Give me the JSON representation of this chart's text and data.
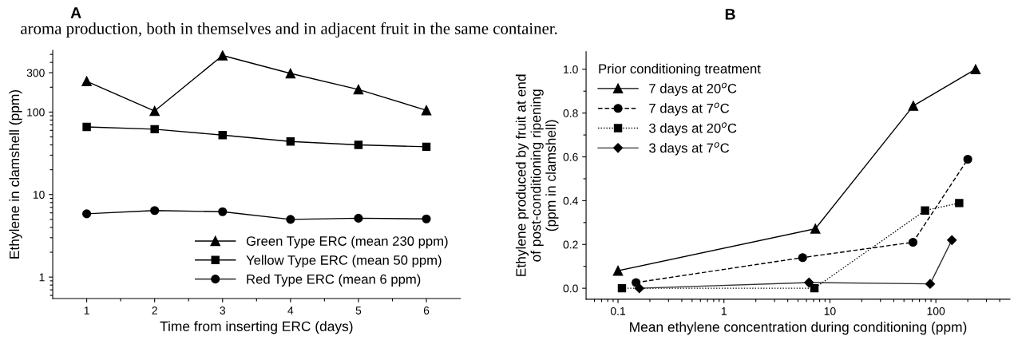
{
  "chart_data": [
    {
      "type": "line",
      "title": "A",
      "xlabel": "Time from inserting ERC (days)",
      "ylabel": "Ethylene in clamshell (ppm)",
      "log": "y",
      "legend": "bottom right",
      "grid": false,
      "annotations": [
        "aroma production, both in themselves and in adjacent fruit in the same container."
      ],
      "x": [
        1,
        2,
        3,
        4,
        5,
        6
      ],
      "xlim": [
        0.5,
        6.5
      ],
      "xticks": [
        1,
        {
          "value": 1.5,
          "label": null
        },
        2,
        {
          "value": 2.5,
          "label": null
        },
        3,
        {
          "value": 3.5,
          "label": null
        },
        4,
        {
          "value": 4.5,
          "label": null
        },
        5,
        {
          "value": 5.5,
          "label": null
        },
        6
      ],
      "ylim": [
        0.55,
        560
      ],
      "yticks": [
        {
          "value": 0.6,
          "label": null
        },
        {
          "value": 0.7,
          "label": null
        },
        {
          "value": 0.8,
          "label": null
        },
        {
          "value": 0.9,
          "label": null
        },
        1,
        {
          "value": 2,
          "label": null
        },
        {
          "value": 3,
          "label": null
        },
        {
          "value": 4,
          "label": null
        },
        {
          "value": 5,
          "label": null
        },
        {
          "value": 6,
          "label": null
        },
        {
          "value": 7,
          "label": null
        },
        {
          "value": 8,
          "label": null
        },
        {
          "value": 9,
          "label": null
        },
        10,
        {
          "value": 20,
          "label": null
        },
        {
          "value": 30,
          "label": null
        },
        {
          "value": 40,
          "label": null
        },
        {
          "value": 50,
          "label": null
        },
        {
          "value": 60,
          "label": null
        },
        {
          "value": 70,
          "label": null
        },
        {
          "value": 80,
          "label": null
        },
        {
          "value": 90,
          "label": null
        },
        100,
        {
          "value": 200,
          "label": null
        },
        300,
        {
          "value": 400,
          "label": null
        },
        {
          "value": 500,
          "label": null
        }
      ],
      "series": [
        {
          "name": "Green Type ERC (mean 230 ppm)",
          "color": "#000000",
          "marker": "triangle",
          "line_style": "solid",
          "values": [
            236,
            103,
            485,
            294,
            188,
            105
          ]
        },
        {
          "name": "Yellow Type ERC (mean 50 ppm)",
          "color": "#000000",
          "marker": "square",
          "line_style": "solid",
          "values": [
            66,
            62,
            52.6,
            44,
            40,
            38
          ]
        },
        {
          "name": "Red Type ERC (mean 6 ppm)",
          "color": "#000000",
          "marker": "circle",
          "line_style": "solid",
          "values": [
            5.85,
            6.4,
            6.2,
            5.0,
            5.17,
            5.07
          ]
        }
      ]
    },
    {
      "type": "line",
      "title": "B",
      "xlabel": "Mean ethylene concentration during conditioning (ppm)",
      "ylabel": "Ethylene produced by fruit at end\nof post-conditioning ripening\n(ppm in clamshell)",
      "log": "x",
      "legend": "top left",
      "legend_title": "Prior conditioning treatment",
      "grid": false,
      "xlim": [
        0.05,
        500
      ],
      "xticks": [
        {
          "value": 0.06,
          "label": null
        },
        {
          "value": 0.07,
          "label": null
        },
        {
          "value": 0.08,
          "label": null
        },
        {
          "value": 0.09,
          "label": null
        },
        0.1,
        {
          "value": 0.2,
          "label": null
        },
        {
          "value": 0.3,
          "label": null
        },
        {
          "value": 0.4,
          "label": null
        },
        {
          "value": 0.5,
          "label": null
        },
        {
          "value": 0.6,
          "label": null
        },
        {
          "value": 0.7,
          "label": null
        },
        {
          "value": 0.8,
          "label": null
        },
        {
          "value": 0.9,
          "label": null
        },
        1,
        {
          "value": 2,
          "label": null
        },
        {
          "value": 3,
          "label": null
        },
        {
          "value": 4,
          "label": null
        },
        {
          "value": 5,
          "label": null
        },
        {
          "value": 6,
          "label": null
        },
        {
          "value": 7,
          "label": null
        },
        {
          "value": 8,
          "label": null
        },
        {
          "value": 9,
          "label": null
        },
        10,
        {
          "value": 20,
          "label": null
        },
        {
          "value": 30,
          "label": null
        },
        {
          "value": 40,
          "label": null
        },
        {
          "value": 50,
          "label": null
        },
        {
          "value": 60,
          "label": null
        },
        {
          "value": 70,
          "label": null
        },
        {
          "value": 80,
          "label": null
        },
        {
          "value": 90,
          "label": null
        },
        100,
        {
          "value": 200,
          "label": null
        },
        {
          "value": 300,
          "label": null
        },
        {
          "value": 400,
          "label": null
        }
      ],
      "ylim": [
        -0.05,
        1.08
      ],
      "yticks": [
        {
          "value": 0.0,
          "label": "0.0"
        },
        {
          "value": 0.1,
          "label": null
        },
        {
          "value": 0.2,
          "label": "0.2"
        },
        {
          "value": 0.3,
          "label": null
        },
        {
          "value": 0.4,
          "label": "0.4"
        },
        {
          "value": 0.5,
          "label": null
        },
        {
          "value": 0.6,
          "label": "0.6"
        },
        {
          "value": 0.7,
          "label": null
        },
        {
          "value": 0.8,
          "label": "0.8"
        },
        {
          "value": 0.9,
          "label": null
        },
        {
          "value": 1.0,
          "label": "1.0"
        }
      ],
      "series": [
        {
          "name": "7 days at 20$^{o}$C",
          "color": "#000000",
          "marker": "triangle",
          "line_style": "solid",
          "x": [
            0.1,
            7.29,
            61.2,
            237
          ],
          "values": [
            0.08,
            0.272,
            0.833,
            1.0
          ]
        },
        {
          "name": "7 days at 7$^{o}$C",
          "color": "#000000",
          "marker": "circle",
          "line_style": "dashed",
          "x": [
            0.148,
            5.53,
            60.8,
            200
          ],
          "values": [
            0.026,
            0.14,
            0.21,
            0.589
          ]
        },
        {
          "name": "3 days at 20$^{o}$C",
          "color": "#000000",
          "marker": "square",
          "line_style": "dotted",
          "x": [
            0.109,
            7.14,
            79,
            166
          ],
          "values": [
            0.0,
            0.0,
            0.355,
            0.389
          ]
        },
        {
          "name": "3 days at 7$^{o}$C",
          "color": "#333333",
          "marker": "diamond",
          "line_style": "solid",
          "x": [
            0.159,
            6.35,
            88.3,
            141.6
          ],
          "values": [
            0.0,
            0.026,
            0.02,
            0.22
          ]
        }
      ]
    }
  ]
}
